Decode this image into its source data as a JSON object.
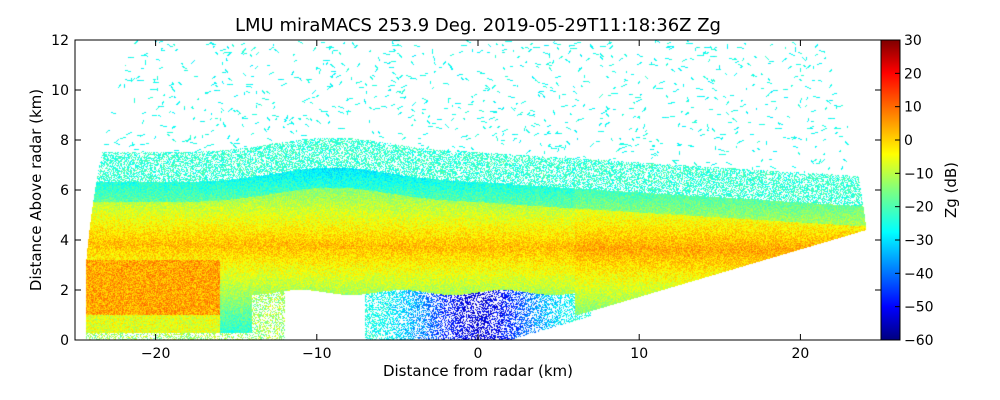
{
  "chart_data": {
    "type": "heatmap",
    "title": "LMU miraMACS 253.9 Deg. 2019-05-29T11:18:36Z  Zg",
    "xlabel": "Distance from radar (km)",
    "ylabel": "Distance Above radar  (km)",
    "xlim": [
      -25,
      25
    ],
    "ylim": [
      0,
      12
    ],
    "xticks": [
      -20,
      -10,
      0,
      10,
      20
    ],
    "yticks": [
      0,
      2,
      4,
      6,
      8,
      10,
      12
    ],
    "colorbar": {
      "label": "Zg (dB)",
      "range": [
        -60,
        30
      ],
      "ticks": [
        30,
        20,
        10,
        0,
        -10,
        -20,
        -30,
        -40,
        -50,
        -60
      ],
      "colormap": "jet"
    },
    "scan_max_range_km": 24.5,
    "features": [
      {
        "name": "main cloud layer",
        "x_range": [
          -23,
          24
        ],
        "height_km": [
          2,
          6.5
        ],
        "peak_dB": 5
      },
      {
        "name": "bright band core",
        "x_range": [
          -14,
          22
        ],
        "height_km": [
          3,
          4.2
        ],
        "peak_dB": 5
      },
      {
        "name": "low reflectivity near radar",
        "x_range": [
          -5,
          5
        ],
        "height_km": [
          0,
          2
        ],
        "min_dB": -55
      }
    ]
  }
}
